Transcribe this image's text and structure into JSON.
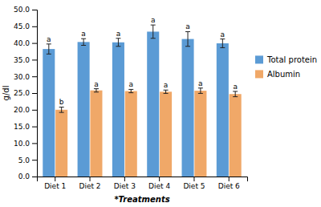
{
  "chart_data": {
    "type": "bar",
    "categories": [
      "Diet 1",
      "Diet 2",
      "Diet 3",
      "Diet 4",
      "Diet 5",
      "Diet 6"
    ],
    "series": [
      {
        "name": "Total protein",
        "color": "#5b9bd5",
        "values": [
          38.2,
          40.3,
          40.2,
          43.4,
          41.2,
          39.9
        ],
        "errors": [
          1.5,
          1.0,
          1.2,
          2.0,
          2.2,
          1.3
        ],
        "significance": [
          "a",
          "a",
          "a",
          "a",
          "a",
          "a"
        ]
      },
      {
        "name": "Albumin",
        "color": "#f0a868",
        "values": [
          20.0,
          25.8,
          25.6,
          25.4,
          25.7,
          24.7
        ],
        "errors": [
          0.8,
          0.5,
          0.5,
          0.5,
          0.8,
          0.8
        ],
        "significance": [
          "b",
          "a",
          "a",
          "a",
          "a",
          "a"
        ]
      }
    ],
    "ylabel": "g/dl",
    "xlabel": "*Treatments",
    "ylim": [
      0,
      50.0
    ],
    "yticks": [
      {
        "value": 0.0,
        "label": "0.0"
      },
      {
        "value": 5.0,
        "label": "5.0"
      },
      {
        "value": 10.0,
        "label": "10.0"
      },
      {
        "value": 15.0,
        "label": "15.0"
      },
      {
        "value": 20.0,
        "label": "20.0"
      },
      {
        "value": 25.0,
        "label": "25.0"
      },
      {
        "value": 30.0,
        "label": "30.0"
      },
      {
        "value": 35.0,
        "label": "35.0"
      },
      {
        "value": 40.0,
        "label": "40.0"
      },
      {
        "value": 45.0,
        "label": "45.0"
      },
      {
        "value": 50.0,
        "label": "50.0"
      }
    ],
    "grid": false,
    "legend": "right"
  }
}
